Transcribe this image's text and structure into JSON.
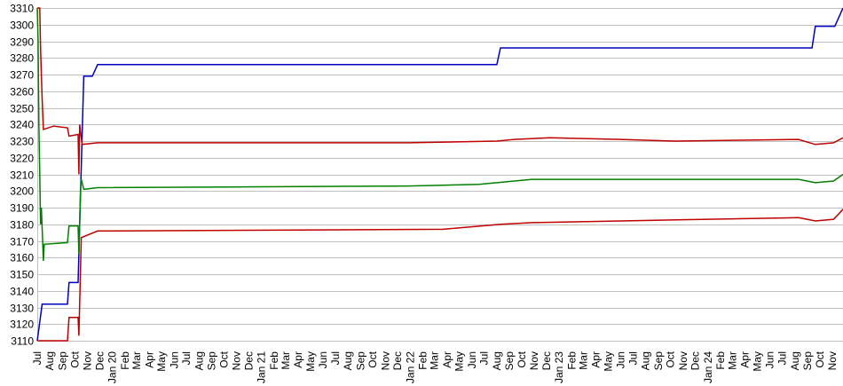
{
  "chart_data": {
    "type": "line",
    "title": "",
    "xlabel": "",
    "ylabel": "",
    "ylim": [
      3110,
      3310
    ],
    "yticks": [
      3110,
      3120,
      3130,
      3140,
      3150,
      3160,
      3170,
      3180,
      3190,
      3200,
      3210,
      3220,
      3230,
      3240,
      3250,
      3260,
      3270,
      3280,
      3290,
      3300,
      3310
    ],
    "xlim": [
      "2019-07-01",
      "2024-11-27"
    ],
    "grid": "horizontal",
    "legend": "none",
    "xticks": [
      {
        "date": "2019-07-01",
        "label": "Jul"
      },
      {
        "date": "2019-08-01",
        "label": "Aug"
      },
      {
        "date": "2019-09-01",
        "label": "Sep"
      },
      {
        "date": "2019-10-01",
        "label": "Oct"
      },
      {
        "date": "2019-11-01",
        "label": "Nov"
      },
      {
        "date": "2019-12-01",
        "label": "Dec"
      },
      {
        "date": "2020-01-01",
        "label": "Jan 20"
      },
      {
        "date": "2020-02-01",
        "label": "Feb"
      },
      {
        "date": "2020-03-01",
        "label": "Mar"
      },
      {
        "date": "2020-04-01",
        "label": "Apr"
      },
      {
        "date": "2020-05-01",
        "label": "May"
      },
      {
        "date": "2020-06-01",
        "label": "Jun"
      },
      {
        "date": "2020-07-01",
        "label": "Jul"
      },
      {
        "date": "2020-08-01",
        "label": "Aug"
      },
      {
        "date": "2020-09-01",
        "label": "Sep"
      },
      {
        "date": "2020-10-01",
        "label": "Oct"
      },
      {
        "date": "2020-11-01",
        "label": "Nov"
      },
      {
        "date": "2020-12-01",
        "label": "Dec"
      },
      {
        "date": "2021-01-01",
        "label": "Jan 21"
      },
      {
        "date": "2021-02-01",
        "label": "Feb"
      },
      {
        "date": "2021-03-01",
        "label": "Mar"
      },
      {
        "date": "2021-04-01",
        "label": "Apr"
      },
      {
        "date": "2021-05-01",
        "label": "May"
      },
      {
        "date": "2021-06-01",
        "label": "Jun"
      },
      {
        "date": "2021-07-01",
        "label": "Jul"
      },
      {
        "date": "2021-08-01",
        "label": "Aug"
      },
      {
        "date": "2021-09-01",
        "label": "Sep"
      },
      {
        "date": "2021-10-01",
        "label": "Oct"
      },
      {
        "date": "2021-11-01",
        "label": "Nov"
      },
      {
        "date": "2021-12-01",
        "label": "Dec"
      },
      {
        "date": "2022-01-01",
        "label": "Jan 22"
      },
      {
        "date": "2022-02-01",
        "label": "Feb"
      },
      {
        "date": "2022-03-01",
        "label": "Mar"
      },
      {
        "date": "2022-04-01",
        "label": "Apr"
      },
      {
        "date": "2022-05-01",
        "label": "May"
      },
      {
        "date": "2022-06-01",
        "label": "Jun"
      },
      {
        "date": "2022-07-01",
        "label": "Jul"
      },
      {
        "date": "2022-08-01",
        "label": "Aug"
      },
      {
        "date": "2022-09-01",
        "label": "Sep"
      },
      {
        "date": "2022-10-01",
        "label": "Oct"
      },
      {
        "date": "2022-11-01",
        "label": "Nov"
      },
      {
        "date": "2022-12-01",
        "label": "Dec"
      },
      {
        "date": "2023-01-01",
        "label": "Jan 23"
      },
      {
        "date": "2023-02-01",
        "label": "Feb"
      },
      {
        "date": "2023-03-01",
        "label": "Mar"
      },
      {
        "date": "2023-04-01",
        "label": "Apr"
      },
      {
        "date": "2023-05-01",
        "label": "May"
      },
      {
        "date": "2023-06-01",
        "label": "Jun"
      },
      {
        "date": "2023-07-01",
        "label": "Jul"
      },
      {
        "date": "2023-08-01",
        "label": "Aug"
      },
      {
        "date": "2023-09-01",
        "label": "Sep"
      },
      {
        "date": "2023-10-01",
        "label": "Oct"
      },
      {
        "date": "2023-11-01",
        "label": "Nov"
      },
      {
        "date": "2023-12-01",
        "label": "Dec"
      },
      {
        "date": "2024-01-01",
        "label": "Jan 24"
      },
      {
        "date": "2024-02-01",
        "label": "Feb"
      },
      {
        "date": "2024-03-01",
        "label": "Mar"
      },
      {
        "date": "2024-04-01",
        "label": "Apr"
      },
      {
        "date": "2024-05-01",
        "label": "May"
      },
      {
        "date": "2024-06-01",
        "label": "Jun"
      },
      {
        "date": "2024-07-01",
        "label": "Jul"
      },
      {
        "date": "2024-08-01",
        "label": "Aug"
      },
      {
        "date": "2024-09-01",
        "label": "Sep"
      },
      {
        "date": "2024-10-01",
        "label": "Oct"
      },
      {
        "date": "2024-11-01",
        "label": "Nov"
      }
    ],
    "series": [
      {
        "color": "#0000c0",
        "points": [
          [
            "2019-07-01",
            3110
          ],
          [
            "2019-07-13",
            3132
          ],
          [
            "2019-09-13",
            3132
          ],
          [
            "2019-09-17",
            3145
          ],
          [
            "2019-10-09",
            3145
          ],
          [
            "2019-10-23",
            3269
          ],
          [
            "2019-11-13",
            3269
          ],
          [
            "2019-11-26",
            3276
          ],
          [
            "2022-08-01",
            3276
          ],
          [
            "2022-08-10",
            3286
          ],
          [
            "2024-09-12",
            3286
          ],
          [
            "2024-09-20",
            3299
          ],
          [
            "2024-11-07",
            3299
          ],
          [
            "2024-11-27",
            3310
          ]
        ]
      },
      {
        "color": "#c00000",
        "points": [
          [
            "2019-07-01",
            3310
          ],
          [
            "2019-07-07",
            3310
          ],
          [
            "2019-07-09",
            3286
          ],
          [
            "2019-07-11",
            3270
          ],
          [
            "2019-07-13",
            3255
          ],
          [
            "2019-07-16",
            3237
          ],
          [
            "2019-08-10",
            3239
          ],
          [
            "2019-09-13",
            3238
          ],
          [
            "2019-09-17",
            3233
          ],
          [
            "2019-10-09",
            3234
          ],
          [
            "2019-10-11",
            3210
          ],
          [
            "2019-10-13",
            3240
          ],
          [
            "2019-10-19",
            3228
          ],
          [
            "2019-11-26",
            3229
          ],
          [
            "2021-12-27",
            3229
          ],
          [
            "2022-08-01",
            3230
          ],
          [
            "2022-09-13",
            3231
          ],
          [
            "2022-12-09",
            3232
          ],
          [
            "2023-06-01",
            3231
          ],
          [
            "2023-10-09",
            3230
          ],
          [
            "2024-08-10",
            3231
          ],
          [
            "2024-09-20",
            3228
          ],
          [
            "2024-11-04",
            3229
          ],
          [
            "2024-11-27",
            3232
          ]
        ]
      },
      {
        "color": "#008000",
        "points": [
          [
            "2019-07-01",
            3310
          ],
          [
            "2019-07-03",
            3290
          ],
          [
            "2019-07-05",
            3240
          ],
          [
            "2019-07-07",
            3210
          ],
          [
            "2019-07-09",
            3180
          ],
          [
            "2019-07-11",
            3190
          ],
          [
            "2019-07-16",
            3158
          ],
          [
            "2019-07-18",
            3168
          ],
          [
            "2019-09-13",
            3169
          ],
          [
            "2019-09-17",
            3179
          ],
          [
            "2019-10-09",
            3179
          ],
          [
            "2019-10-11",
            3162
          ],
          [
            "2019-10-15",
            3200
          ],
          [
            "2019-10-17",
            3207
          ],
          [
            "2019-10-23",
            3201
          ],
          [
            "2019-11-26",
            3202
          ],
          [
            "2021-12-27",
            3203
          ],
          [
            "2022-06-18",
            3204
          ],
          [
            "2022-08-01",
            3205
          ],
          [
            "2022-09-13",
            3206
          ],
          [
            "2022-10-27",
            3207
          ],
          [
            "2024-08-10",
            3207
          ],
          [
            "2024-09-20",
            3205
          ],
          [
            "2024-11-04",
            3206
          ],
          [
            "2024-11-27",
            3210
          ]
        ]
      },
      {
        "color": "#c00000",
        "points": [
          [
            "2019-07-01",
            3110
          ],
          [
            "2019-09-13",
            3110
          ],
          [
            "2019-09-17",
            3124
          ],
          [
            "2019-10-09",
            3124
          ],
          [
            "2019-10-11",
            3113
          ],
          [
            "2019-10-17",
            3172
          ],
          [
            "2019-11-26",
            3176
          ],
          [
            "2022-03-22",
            3177
          ],
          [
            "2022-08-10",
            3180
          ],
          [
            "2022-10-27",
            3181
          ],
          [
            "2023-06-01",
            3182
          ],
          [
            "2024-01-01",
            3183
          ],
          [
            "2024-08-10",
            3184
          ],
          [
            "2024-09-20",
            3182
          ],
          [
            "2024-11-04",
            3183
          ],
          [
            "2024-11-27",
            3189
          ]
        ]
      }
    ]
  }
}
